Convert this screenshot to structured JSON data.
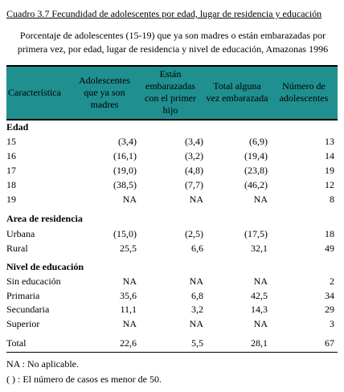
{
  "header": {
    "title": "Cuadro 3.7  Fecundidad de adolescentes por edad, lugar de residencia y educación",
    "subtitle": "Porcentaje de adolescentes (15-19) que ya son madres o están embarazadas por primera vez, por edad, lugar de residencia y nivel de educación, Amazonas 1996"
  },
  "table": {
    "columns": [
      "Característica",
      "Adolescentes que ya son madres",
      "Están embarazadas con el primer hijo",
      "Total alguna vez embarazada",
      "Número de adolescentes"
    ],
    "sections": [
      {
        "title": "Edad",
        "rows": [
          [
            "15",
            "(3,4)",
            "(3,4)",
            "(6,9)",
            "13"
          ],
          [
            "16",
            "(16,1)",
            "(3,2)",
            "(19,4)",
            "14"
          ],
          [
            "17",
            "(19,0)",
            "(4,8)",
            "(23,8)",
            "19"
          ],
          [
            "18",
            "(38,5)",
            "(7,7)",
            "(46,2)",
            "12"
          ],
          [
            "19",
            "NA",
            "NA",
            "NA",
            "8"
          ]
        ]
      },
      {
        "title": "Area de residencia",
        "rows": [
          [
            "Urbana",
            "(15,0)",
            "(2,5)",
            "(17,5)",
            "18"
          ],
          [
            "Rural",
            "25,5",
            "6,6",
            "32,1",
            "49"
          ]
        ]
      },
      {
        "title": "Nivel de educación",
        "rows": [
          [
            "Sin educación",
            "NA",
            "NA",
            "NA",
            "2"
          ],
          [
            "Primaria",
            "35,6",
            "6,8",
            "42,5",
            "34"
          ],
          [
            "Secundaria",
            "11,1",
            "3,2",
            "14,3",
            "29"
          ],
          [
            "Superior",
            "NA",
            "NA",
            "NA",
            "3"
          ]
        ]
      }
    ],
    "total": [
      "Total",
      "22,6",
      "5,5",
      "28,1",
      "67"
    ]
  },
  "notes": [
    "NA : No aplicable.",
    "( ) : El número de casos es menor de 50."
  ]
}
